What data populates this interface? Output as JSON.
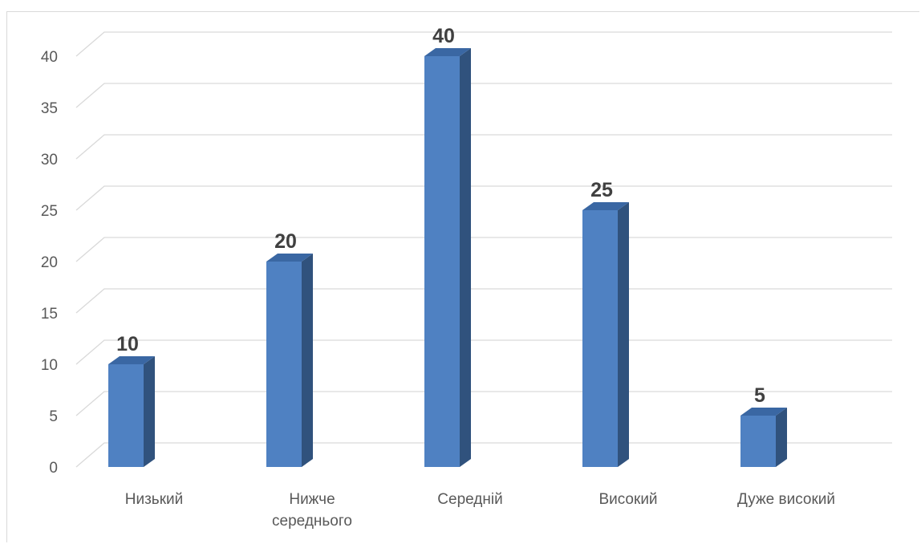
{
  "chart_data": {
    "type": "bar",
    "style": "3d-column",
    "categories": [
      [
        "Низький"
      ],
      [
        "Нижче",
        "середнього"
      ],
      [
        "Середній"
      ],
      [
        "Високий"
      ],
      [
        "Дуже високий"
      ]
    ],
    "values": [
      10,
      20,
      40,
      25,
      5
    ],
    "data_labels": [
      "10",
      "20",
      "40",
      "25",
      "5"
    ],
    "ylim": [
      0,
      40
    ],
    "yticks": [
      0,
      5,
      10,
      15,
      20,
      25,
      30,
      35,
      40
    ],
    "grid": true,
    "legend": "none",
    "colors": {
      "bar_front": "#4f81c2",
      "bar_side": "#30527d",
      "bar_top": "#3a67a3",
      "gridline": "#d9d9d9"
    }
  }
}
